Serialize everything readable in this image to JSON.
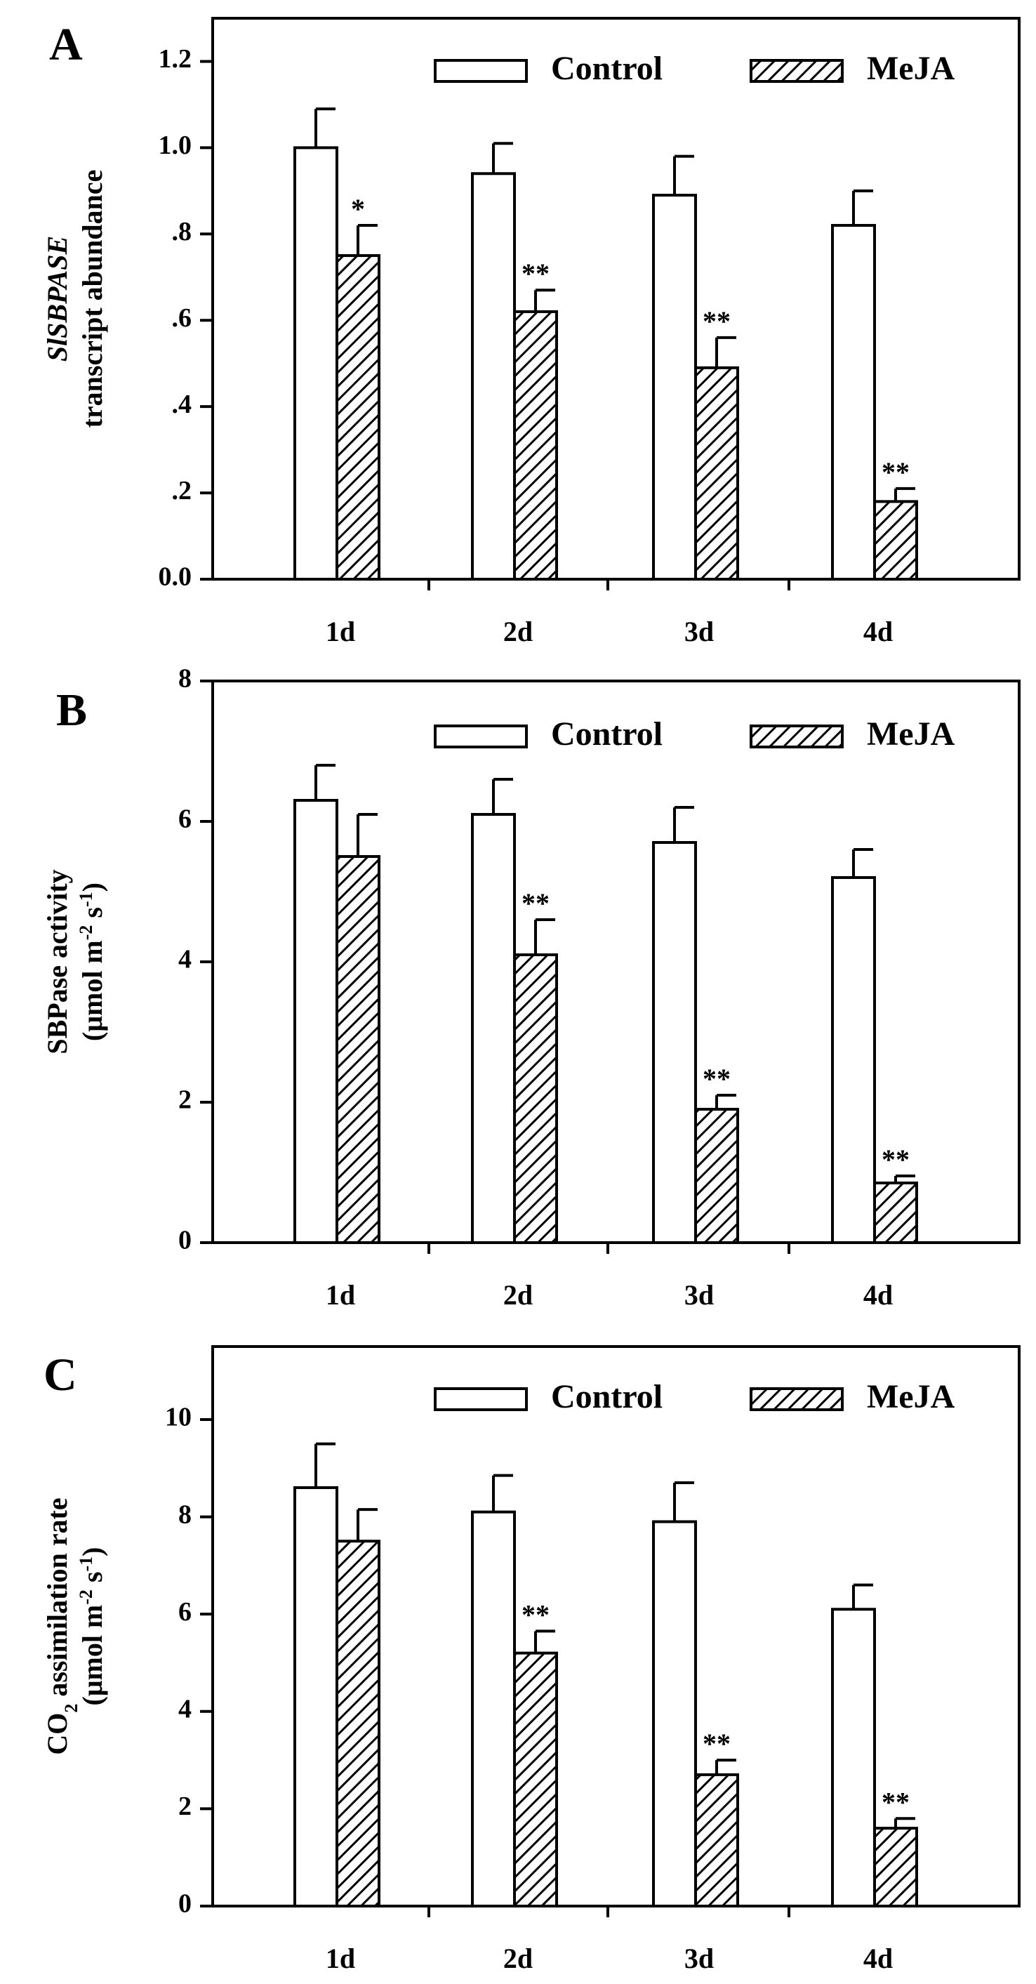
{
  "chart_data": [
    {
      "type": "bar",
      "panel": "A",
      "categories": [
        "1d",
        "2d",
        "3d",
        "4d"
      ],
      "series": [
        {
          "name": "Control",
          "values": [
            1.0,
            0.94,
            0.89,
            0.82
          ],
          "errors": [
            0.09,
            0.07,
            0.09,
            0.08
          ],
          "sig": [
            "",
            "",
            "",
            ""
          ]
        },
        {
          "name": "MeJA",
          "values": [
            0.75,
            0.62,
            0.49,
            0.18
          ],
          "errors": [
            0.07,
            0.05,
            0.07,
            0.03
          ],
          "sig": [
            "*",
            "**",
            "**",
            "**"
          ]
        }
      ],
      "ylim": [
        0,
        1.3
      ],
      "yticks": [
        0,
        0.2,
        0.4,
        0.6,
        0.8,
        1.0,
        1.2
      ],
      "ytick_labels": [
        "0.0",
        ".2",
        ".4",
        ".6",
        ".8",
        "1.0",
        "1.2"
      ],
      "ylabel_lines": [
        {
          "segments": [
            {
              "text": "SlSBPASE",
              "italic": true
            }
          ]
        },
        {
          "segments": [
            {
              "text": "transcript abundance"
            }
          ]
        }
      ],
      "legend": "top-right"
    },
    {
      "type": "bar",
      "panel": "B",
      "categories": [
        "1d",
        "2d",
        "3d",
        "4d"
      ],
      "series": [
        {
          "name": "Control",
          "values": [
            6.3,
            6.1,
            5.7,
            5.2
          ],
          "errors": [
            0.5,
            0.5,
            0.5,
            0.4
          ],
          "sig": [
            "",
            "",
            "",
            ""
          ]
        },
        {
          "name": "MeJA",
          "values": [
            5.5,
            4.1,
            1.9,
            0.85
          ],
          "errors": [
            0.6,
            0.5,
            0.2,
            0.1
          ],
          "sig": [
            "",
            "**",
            "**",
            "**"
          ]
        }
      ],
      "ylim": [
        0,
        8
      ],
      "yticks": [
        0,
        2,
        4,
        6,
        8
      ],
      "ytick_labels": [
        "0",
        "2",
        "4",
        "6",
        "8"
      ],
      "ylabel_lines": [
        {
          "segments": [
            {
              "text": "SBPase activity"
            }
          ]
        },
        {
          "segments": [
            {
              "text": "(μmol m"
            },
            {
              "text": "-2",
              "sup": true
            },
            {
              "text": " s"
            },
            {
              "text": "-1",
              "sup": true
            },
            {
              "text": ")"
            }
          ]
        }
      ],
      "legend": "top-right"
    },
    {
      "type": "bar",
      "panel": "C",
      "categories": [
        "1d",
        "2d",
        "3d",
        "4d"
      ],
      "series": [
        {
          "name": "Control",
          "values": [
            8.6,
            8.1,
            7.9,
            6.1
          ],
          "errors": [
            0.9,
            0.75,
            0.8,
            0.5
          ],
          "sig": [
            "",
            "",
            "",
            ""
          ]
        },
        {
          "name": "MeJA",
          "values": [
            7.5,
            5.2,
            2.7,
            1.6
          ],
          "errors": [
            0.65,
            0.45,
            0.3,
            0.2
          ],
          "sig": [
            "",
            "**",
            "**",
            "**"
          ]
        }
      ],
      "ylim": [
        0,
        11.5
      ],
      "yticks": [
        0,
        2,
        4,
        6,
        8,
        10
      ],
      "ytick_labels": [
        "0",
        "2",
        "4",
        "6",
        "8",
        "10"
      ],
      "ylabel_lines": [
        {
          "segments": [
            {
              "text": "CO"
            },
            {
              "text": "2",
              "sub": true
            },
            {
              "text": " assimilation rate"
            }
          ]
        },
        {
          "segments": [
            {
              "text": "(μmol m"
            },
            {
              "text": "-2",
              "sup": true
            },
            {
              "text": " s"
            },
            {
              "text": "-1",
              "sup": true
            },
            {
              "text": ")"
            }
          ]
        }
      ],
      "legend": "top-right"
    }
  ]
}
